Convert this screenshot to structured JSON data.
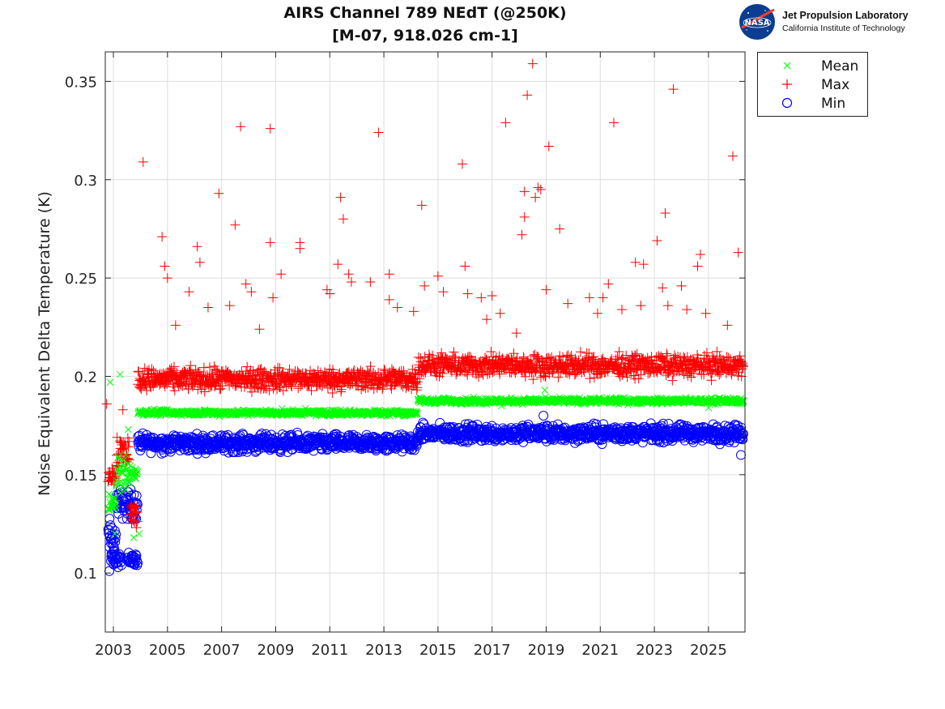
{
  "title_line1": "AIRS Channel 789 NEdT (@250K)",
  "title_line2": "[M-07, 918.026 cm-1]",
  "logo": {
    "org": "Jet Propulsion Laboratory",
    "sub": "California Institute of Technology",
    "seal_text": "NASA"
  },
  "chart_data": {
    "type": "scatter",
    "ylabel": "Noise Equivalent Delta Temperature (K)",
    "xlabel": "",
    "xlim": [
      2002.7,
      2026.35
    ],
    "ylim": [
      0.07,
      0.365
    ],
    "xticks": [
      "2003",
      "2005",
      "2007",
      "2009",
      "2011",
      "2013",
      "2015",
      "2017",
      "2019",
      "2021",
      "2023",
      "2025"
    ],
    "yticks": [
      "0.1",
      "0.15",
      "0.2",
      "0.25",
      "0.3",
      "0.35"
    ],
    "grid": true,
    "legend_placement": "outside-top-right",
    "series": [
      {
        "name": "Mean",
        "marker": "x",
        "color": "#00ff00",
        "segments": [
          {
            "x_start": 2002.8,
            "x_end": 2003.1,
            "y": 0.135,
            "jitter": 0.004
          },
          {
            "x_start": 2003.1,
            "x_end": 2003.6,
            "y": 0.15,
            "jitter": 0.008
          },
          {
            "x_start": 2003.6,
            "x_end": 2003.9,
            "y": 0.151,
            "jitter": 0.003
          },
          {
            "x_start": 2003.9,
            "x_end": 2014.25,
            "y": 0.1815,
            "jitter": 0.0012
          },
          {
            "x_start": 2014.25,
            "x_end": 2026.3,
            "y": 0.1875,
            "jitter": 0.0012
          }
        ],
        "outliers": [
          [
            2002.88,
            0.197
          ],
          [
            2003.25,
            0.201
          ],
          [
            2003.55,
            0.173
          ],
          [
            2003.05,
            0.12
          ],
          [
            2003.75,
            0.118
          ],
          [
            2003.95,
            0.12
          ],
          [
            2018.95,
            0.193
          ],
          [
            2017.35,
            0.185
          ],
          [
            2025.0,
            0.184
          ]
        ]
      },
      {
        "name": "Max",
        "marker": "+",
        "color": "#ff0000",
        "segments": [
          {
            "x_start": 2002.8,
            "x_end": 2003.1,
            "y": 0.15,
            "jitter": 0.004
          },
          {
            "x_start": 2003.1,
            "x_end": 2003.6,
            "y": 0.162,
            "jitter": 0.008
          },
          {
            "x_start": 2003.6,
            "x_end": 2003.9,
            "y": 0.13,
            "jitter": 0.005
          },
          {
            "x_start": 2003.9,
            "x_end": 2014.25,
            "y": 0.1985,
            "jitter": 0.0045
          },
          {
            "x_start": 2014.25,
            "x_end": 2026.3,
            "y": 0.2055,
            "jitter": 0.0045
          }
        ],
        "outliers": [
          [
            2002.75,
            0.186
          ],
          [
            2003.35,
            0.183
          ],
          [
            2004.1,
            0.309
          ],
          [
            2004.8,
            0.271
          ],
          [
            2004.9,
            0.256
          ],
          [
            2005.0,
            0.25
          ],
          [
            2005.3,
            0.226
          ],
          [
            2005.8,
            0.243
          ],
          [
            2006.1,
            0.266
          ],
          [
            2006.2,
            0.258
          ],
          [
            2006.5,
            0.235
          ],
          [
            2006.9,
            0.293
          ],
          [
            2007.3,
            0.236
          ],
          [
            2007.5,
            0.277
          ],
          [
            2007.7,
            0.327
          ],
          [
            2007.9,
            0.247
          ],
          [
            2008.1,
            0.243
          ],
          [
            2008.4,
            0.224
          ],
          [
            2008.8,
            0.326
          ],
          [
            2008.8,
            0.268
          ],
          [
            2008.9,
            0.24
          ],
          [
            2009.2,
            0.252
          ],
          [
            2009.9,
            0.268
          ],
          [
            2009.9,
            0.265
          ],
          [
            2010.9,
            0.244
          ],
          [
            2011.0,
            0.242
          ],
          [
            2011.3,
            0.257
          ],
          [
            2011.4,
            0.291
          ],
          [
            2011.5,
            0.28
          ],
          [
            2011.7,
            0.252
          ],
          [
            2011.8,
            0.248
          ],
          [
            2012.5,
            0.248
          ],
          [
            2012.8,
            0.324
          ],
          [
            2013.2,
            0.252
          ],
          [
            2013.2,
            0.239
          ],
          [
            2013.5,
            0.235
          ],
          [
            2014.1,
            0.233
          ],
          [
            2014.4,
            0.287
          ],
          [
            2014.5,
            0.246
          ],
          [
            2015.0,
            0.251
          ],
          [
            2015.2,
            0.243
          ],
          [
            2015.9,
            0.308
          ],
          [
            2016.0,
            0.256
          ],
          [
            2016.1,
            0.242
          ],
          [
            2016.6,
            0.24
          ],
          [
            2016.8,
            0.229
          ],
          [
            2017.0,
            0.241
          ],
          [
            2017.3,
            0.232
          ],
          [
            2017.5,
            0.329
          ],
          [
            2017.9,
            0.222
          ],
          [
            2018.1,
            0.272
          ],
          [
            2018.2,
            0.294
          ],
          [
            2018.2,
            0.281
          ],
          [
            2018.3,
            0.343
          ],
          [
            2018.5,
            0.359
          ],
          [
            2018.6,
            0.291
          ],
          [
            2018.7,
            0.296
          ],
          [
            2018.8,
            0.295
          ],
          [
            2019.0,
            0.244
          ],
          [
            2019.1,
            0.317
          ],
          [
            2019.5,
            0.275
          ],
          [
            2019.8,
            0.237
          ],
          [
            2020.6,
            0.24
          ],
          [
            2020.9,
            0.232
          ],
          [
            2021.1,
            0.24
          ],
          [
            2021.3,
            0.247
          ],
          [
            2021.5,
            0.329
          ],
          [
            2021.8,
            0.234
          ],
          [
            2022.3,
            0.258
          ],
          [
            2022.5,
            0.236
          ],
          [
            2022.6,
            0.257
          ],
          [
            2023.1,
            0.269
          ],
          [
            2023.3,
            0.245
          ],
          [
            2023.4,
            0.283
          ],
          [
            2023.5,
            0.236
          ],
          [
            2023.7,
            0.346
          ],
          [
            2024.0,
            0.246
          ],
          [
            2024.2,
            0.234
          ],
          [
            2024.6,
            0.256
          ],
          [
            2024.7,
            0.262
          ],
          [
            2024.9,
            0.232
          ],
          [
            2025.7,
            0.226
          ],
          [
            2025.9,
            0.312
          ],
          [
            2026.1,
            0.263
          ]
        ]
      },
      {
        "name": "Min",
        "marker": "o",
        "color": "#0000ff",
        "segments": [
          {
            "x_start": 2002.8,
            "x_end": 2003.1,
            "y": 0.118,
            "jitter": 0.008
          },
          {
            "x_start": 2002.9,
            "x_end": 2003.3,
            "y": 0.107,
            "jitter": 0.003
          },
          {
            "x_start": 2003.1,
            "x_end": 2003.9,
            "y": 0.135,
            "jitter": 0.006
          },
          {
            "x_start": 2003.5,
            "x_end": 2003.9,
            "y": 0.107,
            "jitter": 0.003
          },
          {
            "x_start": 2003.9,
            "x_end": 2014.25,
            "y": 0.166,
            "jitter": 0.0035
          },
          {
            "x_start": 2014.25,
            "x_end": 2026.3,
            "y": 0.171,
            "jitter": 0.0035
          }
        ],
        "outliers": [
          [
            2002.85,
            0.101
          ],
          [
            2018.9,
            0.18
          ],
          [
            2026.2,
            0.16
          ]
        ]
      }
    ]
  }
}
